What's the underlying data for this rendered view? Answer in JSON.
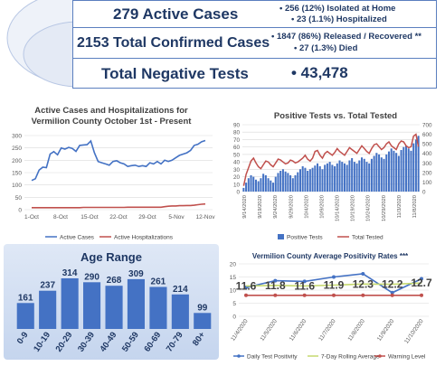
{
  "header": {
    "active_cases": "279 Active Cases",
    "isolated": "• 256 (12%) Isolated at Home",
    "hospitalized": "• 23 (1.1%) Hospitalized",
    "total_confirmed": "2153 Total Confirmed Cases",
    "released": "• 1847 (86%) Released / Recovered **",
    "died": "• 27 (1.3%) Died",
    "negative_label": "Total Negative Tests",
    "negative_value": "•  43,478",
    "colors": {
      "navy": "#1f3864",
      "accent": "#5b7fbf"
    }
  },
  "chart_data": [
    {
      "type": "line",
      "title": "Active Cases and Hospitalizations for Vermilion County October 1st - Present",
      "title_lines": [
        "Active Cases and Hospitalizations for",
        "Vermilion County October 1st - Present"
      ],
      "x_ticks": [
        "1-Oct",
        "8-Oct",
        "15-Oct",
        "22-Oct",
        "29-Oct",
        "5-Nov",
        "12-Nov"
      ],
      "ylim": [
        0,
        300
      ],
      "y_ticks": [
        0,
        50,
        100,
        150,
        200,
        250,
        300
      ],
      "series": [
        {
          "name": "Active Cases",
          "color": "#4472c4",
          "values": [
            118,
            125,
            160,
            172,
            170,
            225,
            235,
            222,
            250,
            245,
            252,
            248,
            236,
            260,
            262,
            263,
            278,
            230,
            195,
            190,
            185,
            180,
            195,
            198,
            190,
            185,
            175,
            178,
            180,
            175,
            178,
            175,
            190,
            185,
            195,
            185,
            200,
            195,
            200,
            210,
            220,
            225,
            230,
            240,
            260,
            265,
            275,
            280
          ]
        },
        {
          "name": "Active  Hospitalizations",
          "color": "#c0504d",
          "values": [
            8,
            8,
            8,
            8,
            8,
            8,
            8,
            8,
            8,
            8,
            8,
            8,
            8,
            8,
            9,
            9,
            9,
            9,
            9,
            9,
            9,
            9,
            9,
            9,
            9,
            9,
            10,
            10,
            10,
            10,
            10,
            10,
            10,
            10,
            10,
            10,
            12,
            14,
            15,
            15,
            16,
            16,
            17,
            17,
            18,
            20,
            22,
            23
          ]
        }
      ],
      "grid": "horizontal",
      "legend": "bottom"
    },
    {
      "type": "bar+line",
      "title": "Positive Tests vs. Total Tested",
      "x_ticks": [
        "9/14/2020",
        "9/19/2020",
        "9/24/2020",
        "9/29/2020",
        "10/4/2020",
        "10/9/2020",
        "10/14/2020",
        "10/19/2020",
        "10/24/2020",
        "10/29/2020",
        "11/3/2020",
        "11/8/2020"
      ],
      "y_left_ticks": [
        0,
        10,
        20,
        30,
        40,
        50,
        60,
        70,
        80,
        90
      ],
      "y_right_ticks": [
        0,
        100,
        200,
        300,
        400,
        500,
        600,
        700
      ],
      "ylim_left": [
        0,
        90
      ],
      "ylim_right": [
        0,
        700
      ],
      "series": [
        {
          "name": "Positive Tests",
          "color": "#4472c4",
          "axis": "left",
          "values": [
            5,
            12,
            18,
            22,
            20,
            16,
            14,
            18,
            24,
            22,
            18,
            15,
            12,
            20,
            25,
            28,
            30,
            27,
            25,
            22,
            18,
            22,
            26,
            30,
            34,
            32,
            28,
            30,
            32,
            35,
            38,
            34,
            30,
            36,
            38,
            40,
            36,
            34,
            38,
            42,
            40,
            38,
            36,
            42,
            45,
            40,
            38,
            42,
            46,
            44,
            40,
            38,
            44,
            48,
            52,
            50,
            46,
            44,
            50,
            54,
            58,
            55,
            52,
            48,
            56,
            60,
            62,
            58,
            55,
            65,
            70,
            75
          ]
        },
        {
          "name": "Total Tested",
          "color": "#c0504d",
          "axis": "right",
          "values": [
            60,
            180,
            250,
            320,
            350,
            300,
            260,
            240,
            280,
            320,
            310,
            280,
            260,
            300,
            340,
            330,
            310,
            290,
            300,
            330,
            320,
            300,
            310,
            330,
            350,
            380,
            340,
            320,
            350,
            420,
            430,
            380,
            350,
            400,
            420,
            400,
            380,
            410,
            450,
            420,
            400,
            380,
            420,
            460,
            440,
            420,
            400,
            440,
            480,
            450,
            420,
            400,
            450,
            490,
            500,
            470,
            440,
            460,
            500,
            520,
            480,
            460,
            440,
            500,
            530,
            520,
            480,
            460,
            470,
            580,
            600,
            470
          ]
        }
      ],
      "grid": "horizontal",
      "legend": "bottom"
    },
    {
      "type": "bar",
      "title": "Age Range",
      "categories": [
        "0-9",
        "10-19",
        "20-29",
        "30-39",
        "40-49",
        "50-59",
        "60-69",
        "70-79",
        "80+"
      ],
      "values": [
        161,
        237,
        314,
        290,
        268,
        309,
        261,
        214,
        99
      ],
      "color": "#4472c4"
    },
    {
      "type": "line",
      "title": "Vermilion County Average Positivity Rates ***",
      "x_ticks": [
        "11/4/2020",
        "11/5/2020",
        "11/6/2020",
        "11/7/2020",
        "11/8/2020",
        "11/9/2020",
        "11/10/2020"
      ],
      "ylim": [
        0,
        20
      ],
      "y_ticks": [
        0,
        5,
        10,
        15,
        20
      ],
      "series": [
        {
          "name": "Daily Test Positivity",
          "color": "#4472c4",
          "values": [
            11.0,
            13.6,
            13.3,
            15.0,
            16.2,
            9.0,
            14.3
          ]
        },
        {
          "name": "7-Day Rolling Average",
          "color": "#c6d96f",
          "values": [
            11.6,
            11.8,
            11.6,
            11.9,
            12.3,
            12.2,
            12.7
          ]
        },
        {
          "name": "Warning Level",
          "color": "#c0504d",
          "values": [
            8,
            8,
            8,
            8,
            8,
            8,
            8
          ]
        }
      ],
      "data_labels": [
        "11.6",
        "11.8",
        "11.6",
        "11.9",
        "12.3",
        "12.2",
        "12.7"
      ],
      "grid": "horizontal",
      "legend": "bottom"
    }
  ]
}
